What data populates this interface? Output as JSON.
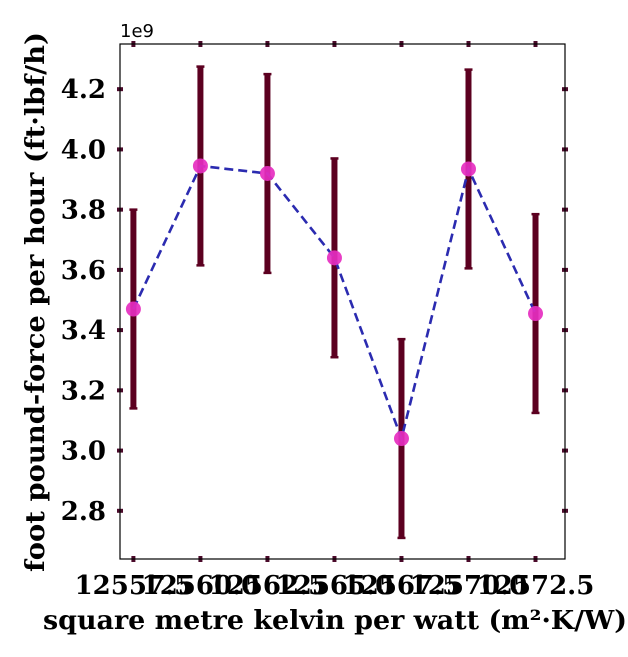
{
  "chart_data": {
    "type": "line",
    "title": "",
    "xlabel": "square metre kelvin per watt (m²·K/W)",
    "ylabel": "foot pound-force per hour (ft·lbf/h)",
    "y_offset_label": "1e9",
    "xlim": [
      12557,
      12573.6
    ],
    "ylim": [
      2.64,
      4.35
    ],
    "x_ticks": [
      {
        "value": 12557.5,
        "label": "12557.5"
      },
      {
        "value": 12560.0,
        "label": "12560.0"
      },
      {
        "value": 12562.5,
        "label": "12562.5"
      },
      {
        "value": 12565.0,
        "label": "12565.0"
      },
      {
        "value": 12567.5,
        "label": "12567.5"
      },
      {
        "value": 12570.0,
        "label": "12570.0"
      },
      {
        "value": 12572.5,
        "label": "12572.5"
      }
    ],
    "y_ticks": [
      {
        "value": 2.8,
        "label": "2.8"
      },
      {
        "value": 3.0,
        "label": "3.0"
      },
      {
        "value": 3.2,
        "label": "3.2"
      },
      {
        "value": 3.4,
        "label": "3.4"
      },
      {
        "value": 3.6,
        "label": "3.6"
      },
      {
        "value": 3.8,
        "label": "3.8"
      },
      {
        "value": 4.0,
        "label": "4.0"
      },
      {
        "value": 4.2,
        "label": "4.2"
      }
    ],
    "grid": false,
    "legend": "none",
    "series": [
      {
        "x": [
          12557.5,
          12560.0,
          12562.5,
          12565.0,
          12567.5,
          12570.0,
          12572.5
        ],
        "y": [
          3.47,
          3.945,
          3.92,
          3.64,
          3.04,
          3.935,
          3.455
        ],
        "yerr": [
          0.33,
          0.33,
          0.33,
          0.33,
          0.33,
          0.33,
          0.33
        ],
        "line_color": "#2b2bb0",
        "line_style": "dashed",
        "marker_color": "#e62ec0",
        "errorbar_color": "#5c0020"
      }
    ]
  }
}
